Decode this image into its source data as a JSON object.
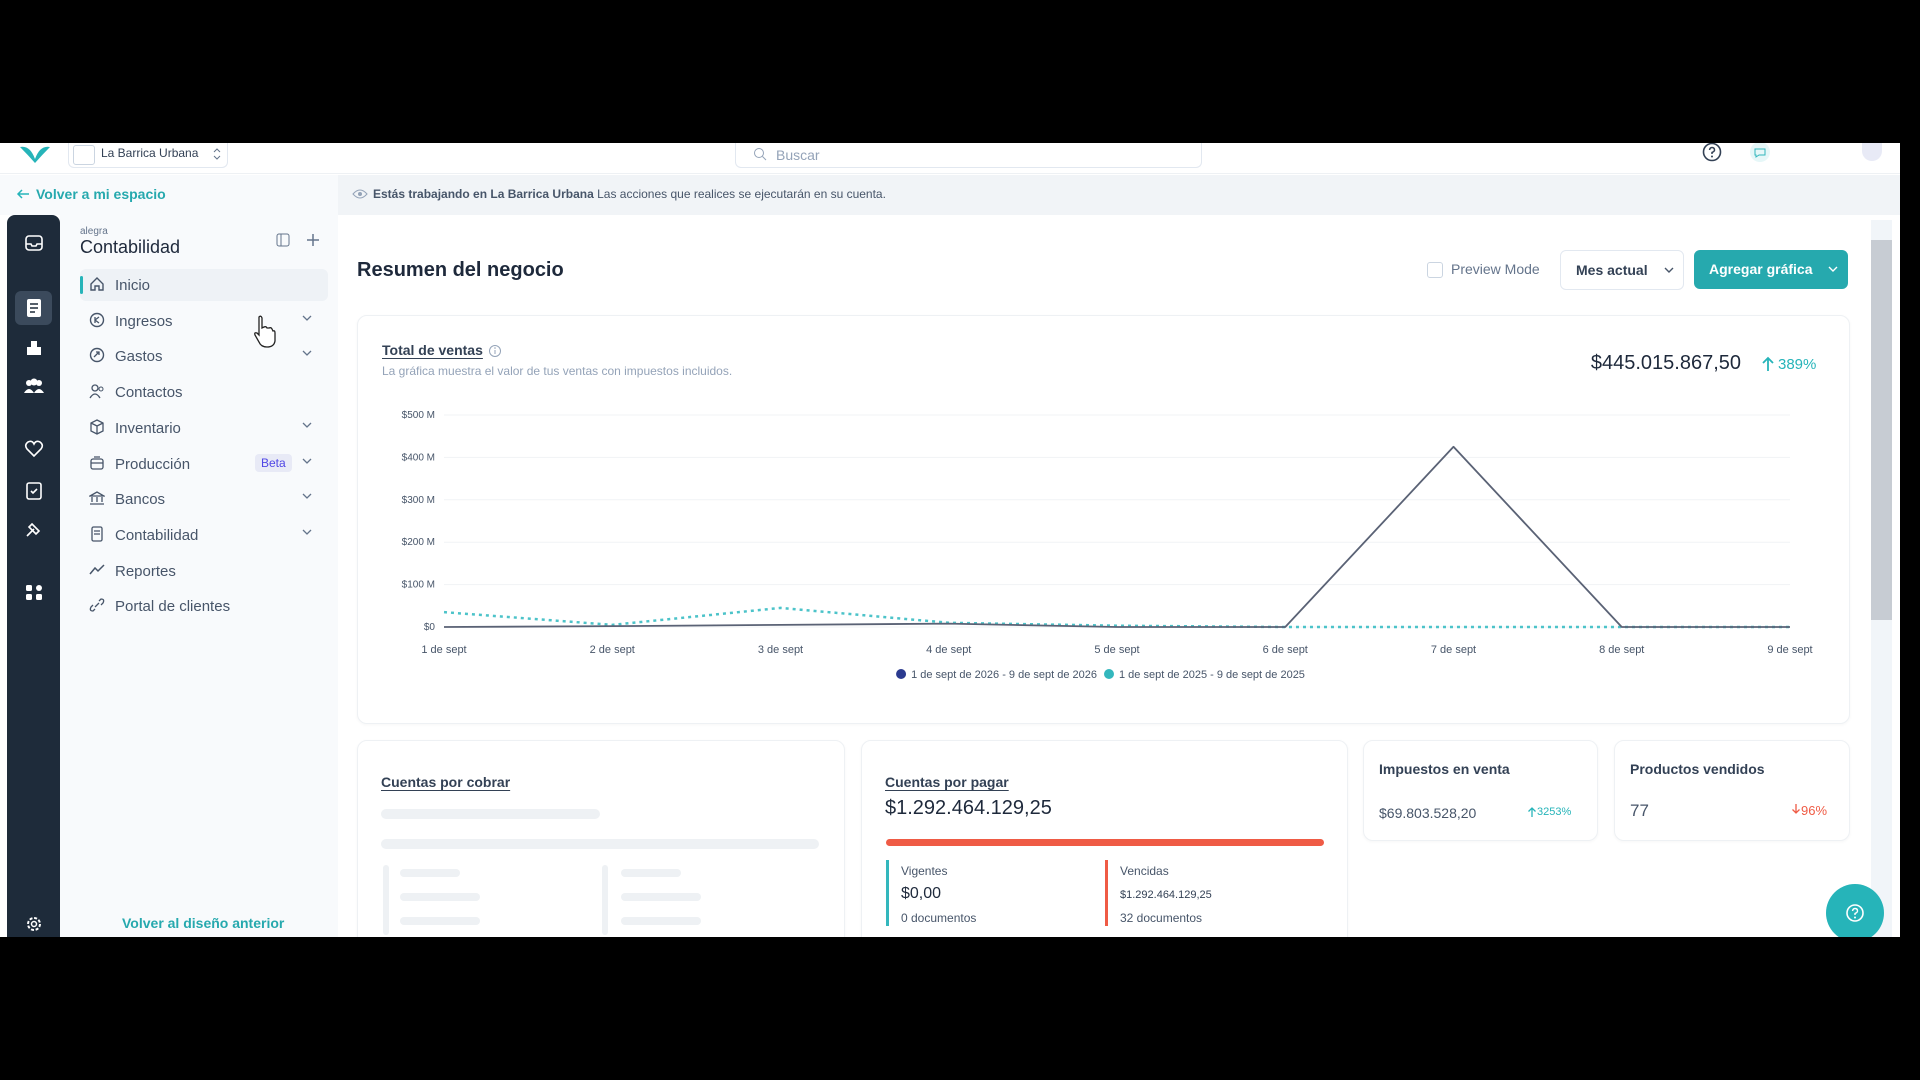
{
  "topbar": {
    "company": "La Barrica Urbana",
    "search_placeholder": "Buscar"
  },
  "banner": {
    "back_link": "Volver a mi espacio",
    "notice_bold": "Estás trabajando en La Barrica Urbana",
    "notice_text": "Las acciones que realices se ejecutarán en su cuenta."
  },
  "sidebar": {
    "brand_small": "alegra",
    "brand": "Contabilidad",
    "items": [
      {
        "label": "Inicio"
      },
      {
        "label": "Ingresos"
      },
      {
        "label": "Gastos"
      },
      {
        "label": "Contactos"
      },
      {
        "label": "Inventario"
      },
      {
        "label": "Producción",
        "badge": "Beta"
      },
      {
        "label": "Bancos"
      },
      {
        "label": "Contabilidad"
      },
      {
        "label": "Reportes"
      },
      {
        "label": "Portal de clientes"
      }
    ],
    "footer_link": "Volver al diseño anterior"
  },
  "header": {
    "title": "Resumen del negocio",
    "preview_mode": "Preview Mode",
    "period_button": "Mes actual",
    "add_button": "Agregar gráfica"
  },
  "sales_card": {
    "total": "$445.015.867,50",
    "change": "389%"
  },
  "chart_data": {
    "type": "line",
    "title": "Total de ventas",
    "subtitle": "La gráfica muestra el valor de tus ventas con impuestos incluidos.",
    "categories": [
      "1 de sept",
      "2 de sept",
      "3 de sept",
      "4 de sept",
      "5 de sept",
      "6 de sept",
      "7 de sept",
      "8 de sept",
      "9 de sept"
    ],
    "series": [
      {
        "name": "1 de sept de 2026 - 9 de sept de 2026",
        "color": "#5a6275",
        "legend_color": "#2b3a8f",
        "line_style": "solid",
        "values": [
          0,
          2,
          5,
          8,
          0,
          0,
          425,
          0,
          0
        ]
      },
      {
        "name": "1 de sept de 2025 - 9 de sept de 2025",
        "color": "#4cc3c9",
        "legend_color": "#33b7bd",
        "line_style": "dashed",
        "values": [
          35,
          5,
          45,
          10,
          3,
          0,
          0,
          0,
          0
        ]
      }
    ],
    "ylim": [
      0,
      500
    ],
    "yticks": [
      {
        "value": 0,
        "label": "$0"
      },
      {
        "value": 100,
        "label": "$100 M"
      },
      {
        "value": 200,
        "label": "$200 M"
      },
      {
        "value": 300,
        "label": "$300 M"
      },
      {
        "value": 400,
        "label": "$400 M"
      },
      {
        "value": 500,
        "label": "$500 M"
      }
    ],
    "grid": true
  },
  "receivables": {
    "title": "Cuentas por cobrar"
  },
  "payables": {
    "title": "Cuentas por pagar",
    "total": "$1.292.464.129,25",
    "current": {
      "label": "Vigentes",
      "amount": "$0,00",
      "docs": "0 documentos"
    },
    "overdue": {
      "label": "Vencidas",
      "amount": "$1.292.464.129,25",
      "docs": "32 documentos"
    }
  },
  "sales_tax": {
    "title": "Impuestos en venta",
    "amount": "$69.803.528,20",
    "change": "3253%"
  },
  "products_sold": {
    "title": "Productos vendidos",
    "amount": "77",
    "change": "96%"
  }
}
